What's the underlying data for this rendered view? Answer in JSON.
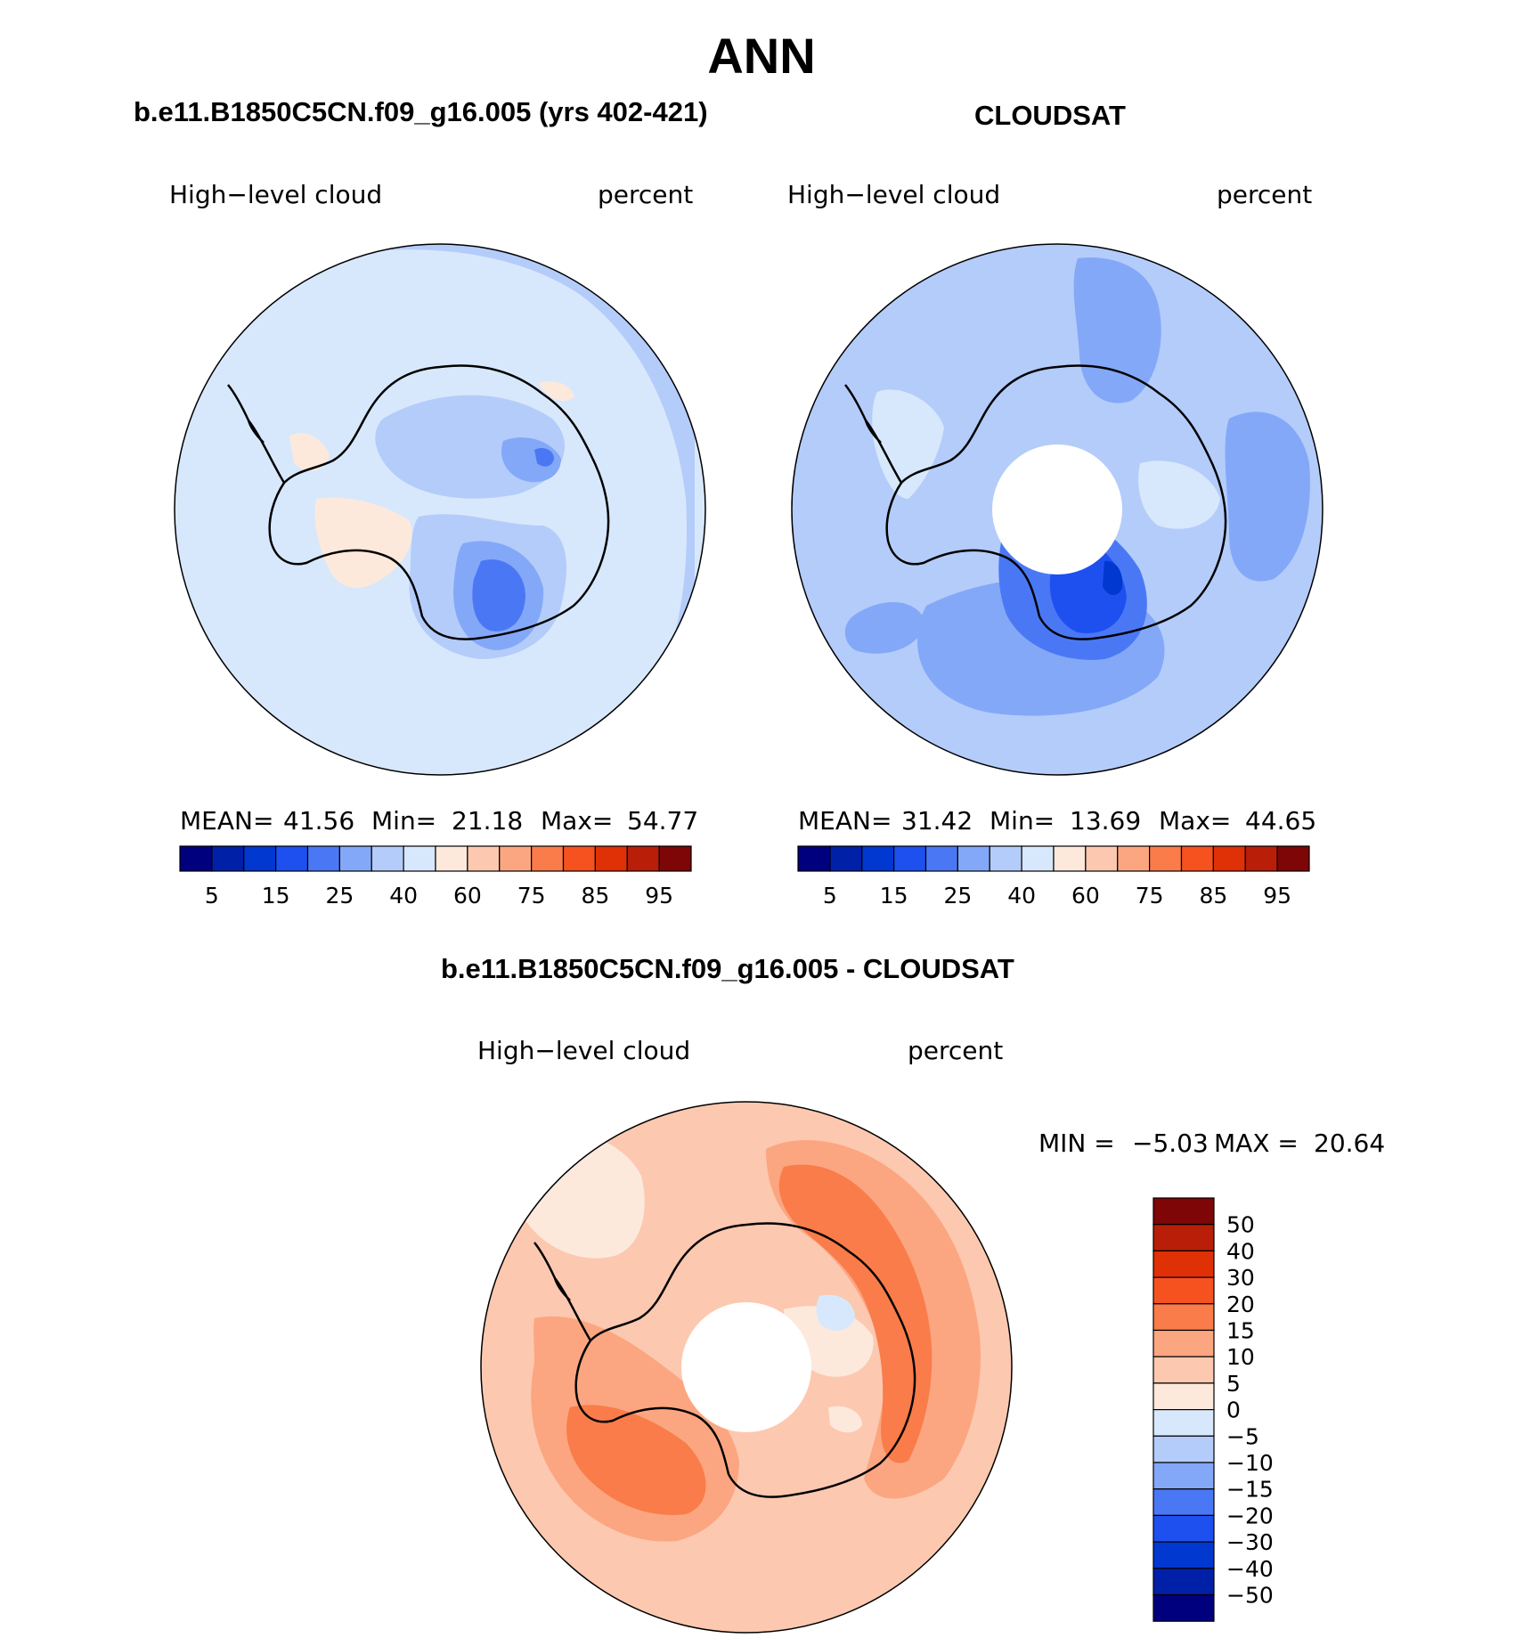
{
  "title": "ANN",
  "panels": [
    {
      "title": "b.e11.B1850C5CN.f09_g16.005 (yrs 402-421)",
      "variable": "High−level cloud",
      "units": "percent",
      "stats": {
        "mean_label": "MEAN=",
        "mean": "41.56",
        "min_label": "Min=",
        "min": "21.18",
        "max_label": "Max=",
        "max": "54.77"
      }
    },
    {
      "title": "CLOUDSAT",
      "variable": "High−level cloud",
      "units": "percent",
      "stats": {
        "mean_label": "MEAN=",
        "mean": "31.42",
        "min_label": "Min=",
        "min": "13.69",
        "max_label": "Max=",
        "max": "44.65"
      }
    }
  ],
  "colorbar": {
    "colors": [
      "#00007f",
      "#0020a8",
      "#0038d0",
      "#1e50f0",
      "#4a78f5",
      "#84a8f8",
      "#b4ccfa",
      "#d8e8fc",
      "#fde9dc",
      "#fcc8b0",
      "#fba680",
      "#f97c4a",
      "#f55220",
      "#df3006",
      "#b81e08",
      "#7e0606"
    ],
    "tick_labels": [
      "5",
      "15",
      "25",
      "40",
      "60",
      "75",
      "85",
      "95"
    ]
  },
  "difference": {
    "title": "b.e11.B1850C5CN.f09_g16.005 - CLOUDSAT",
    "variable": "High−level cloud",
    "units": "percent",
    "min_label": "MIN =",
    "min": "−5.03",
    "max_label": "MAX =",
    "max": "20.64",
    "colorbar": {
      "labels": [
        "50",
        "40",
        "30",
        "20",
        "15",
        "10",
        "5",
        "0",
        "−5",
        "−10",
        "−15",
        "−20",
        "−30",
        "−40",
        "−50"
      ],
      "colors": [
        "#7e0606",
        "#b81e08",
        "#df3006",
        "#f55220",
        "#f97c4a",
        "#fba680",
        "#fcc8b0",
        "#fde9dc",
        "#d8e8fc",
        "#b4ccfa",
        "#84a8f8",
        "#4a78f5",
        "#1e50f0",
        "#0038d0",
        "#0020a8",
        "#00007f"
      ]
    }
  },
  "map_colors": {
    "land_outline": "#000000",
    "missing": "#ffffff"
  }
}
